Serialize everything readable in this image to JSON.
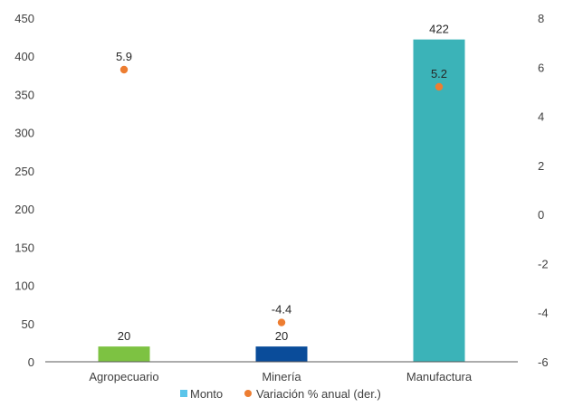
{
  "chart_data": {
    "type": "bar",
    "categories": [
      "Agropecuario",
      "Minería",
      "Manufactura"
    ],
    "series": [
      {
        "name": "Monto",
        "kind": "bar",
        "axis": "left",
        "values": [
          20,
          20,
          422
        ],
        "labels": [
          "20",
          "20",
          "422"
        ],
        "bar_colors": [
          "#7DC242",
          "#0A4C9A",
          "#3BB3B8"
        ],
        "legend_color": "#5BC5EA"
      },
      {
        "name": "Variación % anual (der.)",
        "kind": "scatter",
        "axis": "right",
        "values": [
          5.9,
          -4.4,
          5.2
        ],
        "labels": [
          "5.9",
          "-4.4",
          "5.2"
        ],
        "color": "#ED7D31"
      }
    ],
    "y_left": {
      "ylim": [
        0,
        450
      ],
      "ticks": [
        "0",
        "50",
        "100",
        "150",
        "200",
        "250",
        "300",
        "350",
        "400",
        "450"
      ]
    },
    "y_right": {
      "ylim": [
        -6,
        8
      ],
      "ticks": [
        "-6",
        "-4",
        "-2",
        "0",
        "2",
        "4",
        "6",
        "8"
      ]
    },
    "grid": false,
    "legend_position": "bottom"
  }
}
